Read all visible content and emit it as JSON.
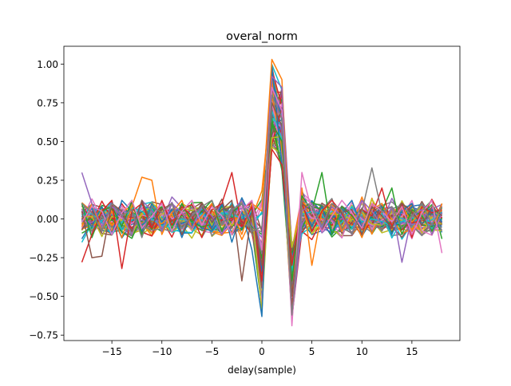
{
  "chart_data": {
    "type": "line",
    "title": "overal_norm",
    "xlabel": "delay(sample)",
    "ylabel": "",
    "xlim": [
      -19.8,
      19.8
    ],
    "ylim": [
      -0.785,
      1.115
    ],
    "grid": false,
    "x": [
      -18,
      -17,
      -16,
      -15,
      -14,
      -13,
      -12,
      -11,
      -10,
      -9,
      -8,
      -7,
      -6,
      -5,
      -4,
      -3,
      -2,
      -1,
      0,
      1,
      2,
      3,
      4,
      5,
      6,
      7,
      8,
      9,
      10,
      11,
      12,
      13,
      14,
      15,
      16,
      17,
      18
    ],
    "x_ticks": [
      -15,
      -10,
      -5,
      0,
      5,
      10,
      15
    ],
    "x_tick_labels": [
      "−15",
      "−10",
      "−5",
      "0",
      "5",
      "10",
      "15"
    ],
    "y_ticks": [
      -0.75,
      -0.5,
      -0.25,
      0.0,
      0.25,
      0.5,
      0.75,
      1.0
    ],
    "y_tick_labels": [
      "−0.75",
      "−0.50",
      "−0.25",
      "0.00",
      "0.25",
      "0.50",
      "0.75",
      "1.00"
    ],
    "colors": [
      "#1f77b4",
      "#ff7f0e",
      "#2ca02c",
      "#d62728",
      "#9467bd",
      "#8c564b",
      "#e377c2",
      "#7f7f7f",
      "#bcbd22",
      "#17becf"
    ],
    "series_note_count": 60,
    "representative_series": [
      {
        "values": [
          0.02,
          -0.05,
          0.08,
          -0.1,
          0.12,
          0.05,
          -0.08,
          0.1,
          -0.02,
          0.06,
          -0.12,
          0.04,
          0.08,
          -0.06,
          0.1,
          -0.15,
          0.05,
          -0.2,
          -0.63,
          0.98,
          0.35,
          -0.45,
          0.1,
          -0.05,
          0.08,
          -0.1,
          0.04,
          0.12,
          -0.06,
          0.02,
          0.08,
          -0.1,
          0.05,
          0.1,
          -0.04,
          0.06,
          -0.02
        ]
      },
      {
        "values": [
          -0.05,
          0.1,
          -0.08,
          0.05,
          -0.12,
          0.08,
          0.27,
          0.25,
          -0.1,
          0.04,
          0.12,
          -0.06,
          0.02,
          0.1,
          -0.08,
          0.05,
          -0.1,
          0.1,
          0.05,
          1.03,
          0.9,
          -0.5,
          0.2,
          -0.3,
          0.05,
          0.1,
          -0.08,
          0.02,
          -0.12,
          0.06,
          0.1,
          -0.04,
          0.08,
          -0.02,
          0.05,
          -0.1,
          0.1
        ]
      },
      {
        "values": [
          0.1,
          -0.12,
          0.05,
          0.08,
          -0.05,
          0.12,
          -0.1,
          0.03,
          0.08,
          -0.06,
          0.1,
          -0.02,
          0.05,
          0.12,
          -0.08,
          0.04,
          0.1,
          -0.05,
          -0.1,
          0.62,
          0.5,
          -0.4,
          0.15,
          0.05,
          0.3,
          -0.1,
          0.08,
          0.02,
          -0.06,
          0.1,
          0.05,
          0.2,
          -0.1,
          0.06,
          0.02,
          -0.08,
          0.04
        ]
      },
      {
        "values": [
          -0.28,
          -0.1,
          0.05,
          0.12,
          -0.32,
          0.05,
          0.1,
          -0.06,
          0.12,
          -0.04,
          0.08,
          0.02,
          -0.12,
          0.06,
          0.1,
          0.3,
          -0.05,
          0.08,
          -0.4,
          0.45,
          0.35,
          -0.3,
          0.1,
          -0.08,
          0.05,
          0.12,
          0.04,
          -0.1,
          0.06,
          0.02,
          0.2,
          -0.05,
          0.1,
          -0.12,
          0.08,
          0.04,
          0.06
        ]
      },
      {
        "values": [
          0.3,
          0.1,
          -0.05,
          0.08,
          0.02,
          -0.1,
          0.12,
          0.05,
          -0.08,
          0.1,
          0.04,
          -0.06,
          0.08,
          0.02,
          -0.1,
          0.05,
          0.12,
          -0.04,
          -0.12,
          0.92,
          0.85,
          -0.65,
          0.05,
          0.1,
          -0.06,
          0.08,
          0.02,
          -0.1,
          0.12,
          0.05,
          -0.04,
          0.08,
          -0.28,
          0.02,
          0.06,
          -0.1,
          0.04
        ]
      },
      {
        "values": [
          0.05,
          -0.25,
          -0.24,
          0.1,
          0.05,
          -0.08,
          0.12,
          -0.04,
          0.06,
          0.1,
          -0.1,
          0.04,
          0.08,
          -0.02,
          0.06,
          0.12,
          -0.4,
          0.05,
          -0.3,
          0.75,
          0.6,
          -0.5,
          0.1,
          0.05,
          -0.08,
          0.1,
          0.04,
          0.06,
          -0.1,
          0.08,
          0.02,
          -0.06,
          0.1,
          0.05,
          -0.04,
          0.08,
          0.02
        ]
      },
      {
        "values": [
          -0.02,
          0.08,
          0.05,
          -0.1,
          0.04,
          0.12,
          -0.06,
          0.02,
          0.1,
          -0.08,
          0.05,
          0.12,
          -0.04,
          0.08,
          0.02,
          -0.1,
          0.06,
          0.12,
          -0.2,
          0.85,
          0.7,
          -0.69,
          0.3,
          0.05,
          -0.08,
          0.02,
          0.12,
          0.04,
          -0.06,
          0.1,
          0.05,
          -0.02,
          0.08,
          -0.1,
          0.04,
          0.12,
          -0.22
        ]
      },
      {
        "values": [
          0.1,
          0.04,
          -0.08,
          0.1,
          0.02,
          0.06,
          -0.12,
          0.08,
          0.04,
          0.1,
          -0.06,
          0.02,
          0.08,
          0.12,
          -0.04,
          0.06,
          0.1,
          -0.08,
          -0.05,
          0.8,
          0.65,
          -0.62,
          0.12,
          0.08,
          -0.04,
          0.1,
          0.06,
          -0.1,
          0.05,
          0.33,
          0.04,
          0.08,
          -0.06,
          0.02,
          0.1,
          -0.04,
          0.08
        ]
      }
    ]
  }
}
